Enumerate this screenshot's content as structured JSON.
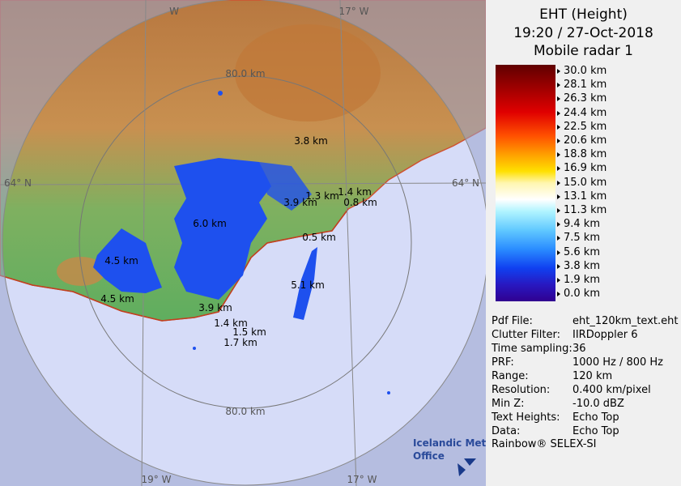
{
  "header": {
    "lines": [
      "EHT (Height)",
      "19:20 / 27-Oct-2018",
      "Mobile radar 1"
    ]
  },
  "legend": {
    "labels": [
      "30.0 km",
      "28.1 km",
      "26.3 km",
      "24.4 km",
      "22.5 km",
      "20.6 km",
      "18.8 km",
      "16.9 km",
      "15.0 km",
      "13.1 km",
      "11.3 km",
      "9.4 km",
      "7.5 km",
      "5.6 km",
      "3.8 km",
      "1.9 km",
      "0.0 km"
    ]
  },
  "info": {
    "rows": [
      [
        "Pdf File:",
        "eht_120km_text.eht"
      ],
      [
        "Clutter Filter:",
        "IIRDoppler 6"
      ],
      [
        "Time sampling:",
        "36"
      ],
      [
        "PRF:",
        "1000 Hz / 800 Hz"
      ],
      [
        "Range:",
        "120 km"
      ],
      [
        "Resolution:",
        "0.400 km/pixel"
      ],
      [
        "Min Z:",
        "-10.0 dBZ"
      ],
      [
        "Text Heights:",
        "Echo Top"
      ],
      [
        "Data:",
        "Echo Top"
      ]
    ]
  },
  "footer": "Rainbow® SELEX-SI",
  "logo": {
    "lines": [
      "Icelandic Met",
      "Office"
    ]
  },
  "map": {
    "grid_labels": [
      "W",
      "17° W",
      "80.0 km",
      "64° N",
      "64° N",
      "80.0 km",
      "19° W",
      "17° W"
    ],
    "echo_labels": [
      "3.8 km",
      "1.3 km",
      "1.4 km",
      "3.9 km",
      "0.8 km",
      "6.0 km",
      "0.5 km",
      "4.5 km",
      "5.1 km",
      "4.5 km",
      "3.9 km",
      "1.4 km",
      "1.5 km",
      "1.7 km"
    ]
  }
}
